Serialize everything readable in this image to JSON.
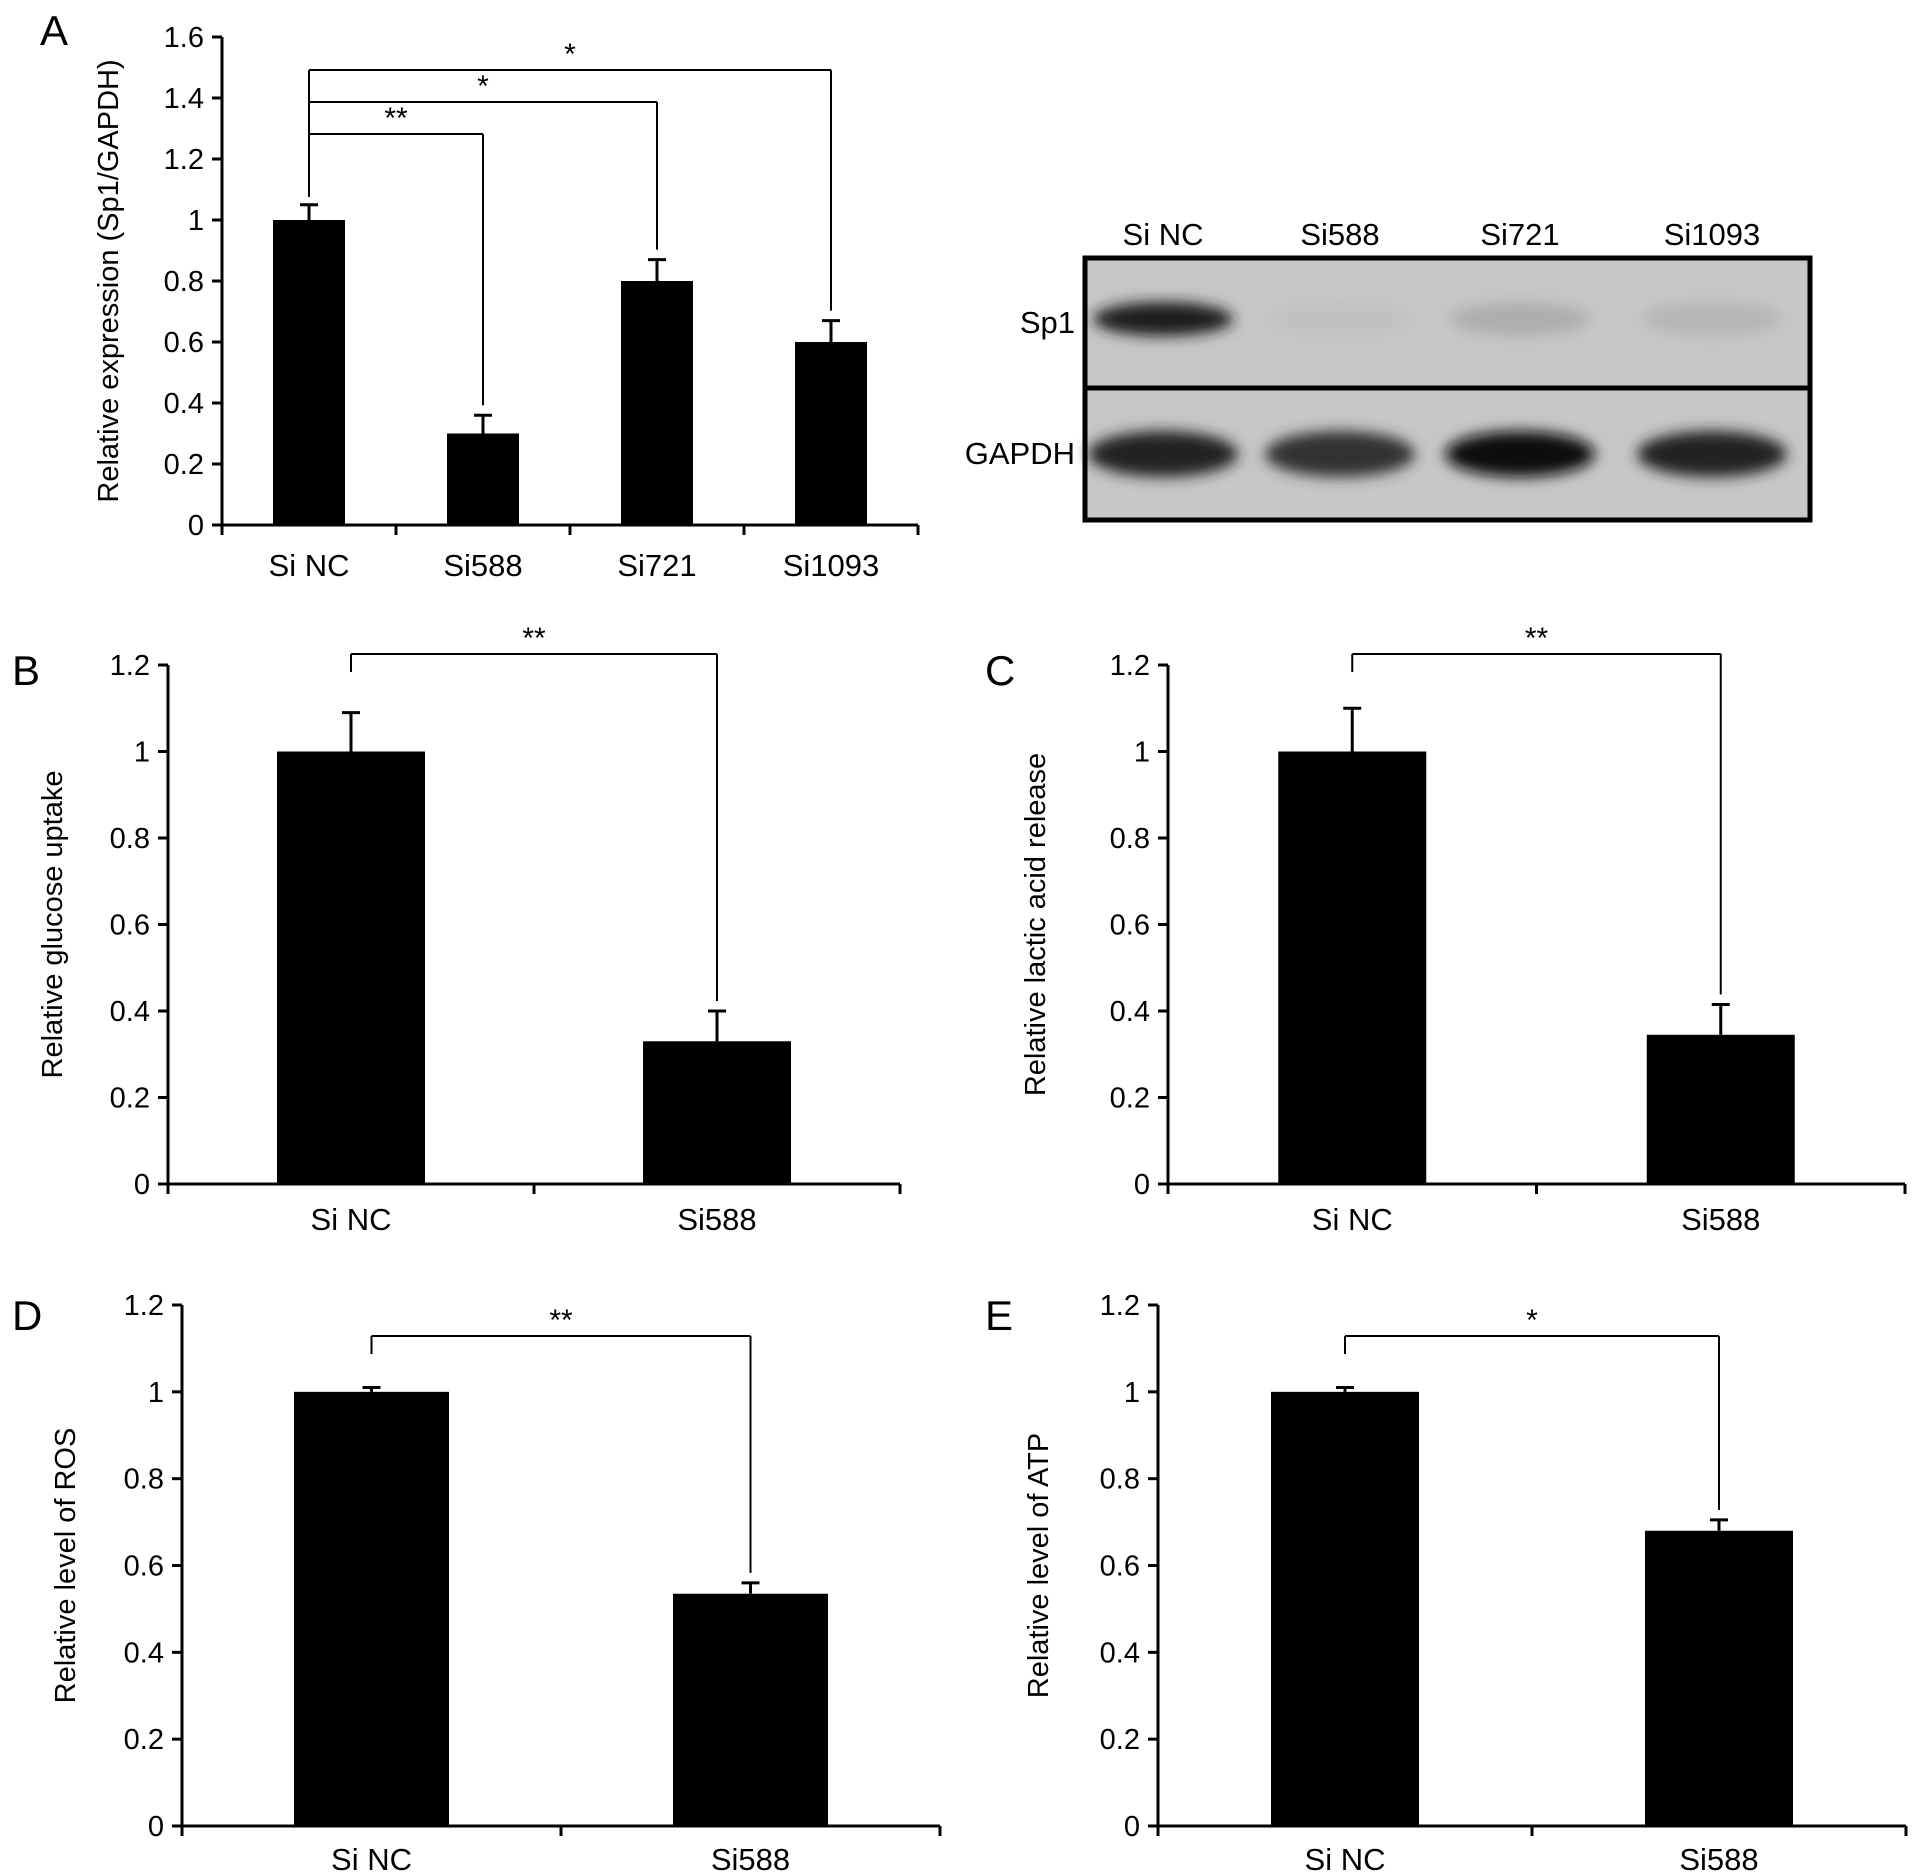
{
  "chart_data": [
    {
      "panel": "A",
      "type": "bar",
      "ylabel": "Relative expression (Sp1/GAPDH)",
      "categories": [
        "Si NC",
        "Si588",
        "Si721",
        "Si1093"
      ],
      "values": [
        1.0,
        0.3,
        0.8,
        0.6
      ],
      "errors": [
        0.05,
        0.06,
        0.07,
        0.07
      ],
      "ylim": [
        0,
        1.6
      ],
      "yticks": [
        "0",
        "0.2",
        "0.4",
        "0.6",
        "0.8",
        "1",
        "1.2",
        "1.4",
        "1.6"
      ],
      "significance": [
        {
          "from": 0,
          "to": 1,
          "label": "**"
        },
        {
          "from": 0,
          "to": 2,
          "label": "*"
        },
        {
          "from": 0,
          "to": 3,
          "label": "*"
        }
      ]
    },
    {
      "panel": "B",
      "type": "bar",
      "ylabel": "Relative glucose uptake",
      "categories": [
        "Si NC",
        "Si588"
      ],
      "values": [
        1.0,
        0.33
      ],
      "errors": [
        0.09,
        0.07
      ],
      "ylim": [
        0,
        1.2
      ],
      "yticks": [
        "0",
        "0.2",
        "0.4",
        "0.6",
        "0.8",
        "1",
        "1.2"
      ],
      "significance": [
        {
          "from": 0,
          "to": 1,
          "label": "**"
        }
      ]
    },
    {
      "panel": "C",
      "type": "bar",
      "ylabel": "Relative lactic acid release",
      "categories": [
        "Si NC",
        "Si588"
      ],
      "values": [
        1.0,
        0.345
      ],
      "errors": [
        0.1,
        0.07
      ],
      "ylim": [
        0,
        1.2
      ],
      "yticks": [
        "0",
        "0.2",
        "0.4",
        "0.6",
        "0.8",
        "1",
        "1.2"
      ],
      "significance": [
        {
          "from": 0,
          "to": 1,
          "label": "**"
        }
      ]
    },
    {
      "panel": "D",
      "type": "bar",
      "ylabel": "Relative level of ROS",
      "categories": [
        "Si NC",
        "Si588"
      ],
      "values": [
        1.0,
        0.535
      ],
      "errors": [
        0.01,
        0.025
      ],
      "ylim": [
        0,
        1.2
      ],
      "yticks": [
        "0",
        "0.2",
        "0.4",
        "0.6",
        "0.8",
        "1",
        "1.2"
      ],
      "significance": [
        {
          "from": 0,
          "to": 1,
          "label": "**"
        }
      ]
    },
    {
      "panel": "E",
      "type": "bar",
      "ylabel": "Relative level of ATP",
      "categories": [
        "Si NC",
        "Si588"
      ],
      "values": [
        1.0,
        0.68
      ],
      "errors": [
        0.01,
        0.025
      ],
      "ylim": [
        0,
        1.2
      ],
      "yticks": [
        "0",
        "0.2",
        "0.4",
        "0.6",
        "0.8",
        "1",
        "1.2"
      ],
      "significance": [
        {
          "from": 0,
          "to": 1,
          "label": "*"
        }
      ]
    }
  ],
  "western_blot": {
    "lanes": [
      "Si NC",
      "Si588",
      "Si721",
      "Si1093"
    ],
    "rows": [
      {
        "label": "Sp1",
        "band_intensity": [
          0.9,
          0.04,
          0.14,
          0.1
        ]
      },
      {
        "label": "GAPDH",
        "band_intensity": [
          0.88,
          0.8,
          0.98,
          0.88
        ]
      }
    ]
  },
  "style": {
    "bar_color": "#000000",
    "background": "#ffffff",
    "blot_background": "#c7c7c7"
  }
}
